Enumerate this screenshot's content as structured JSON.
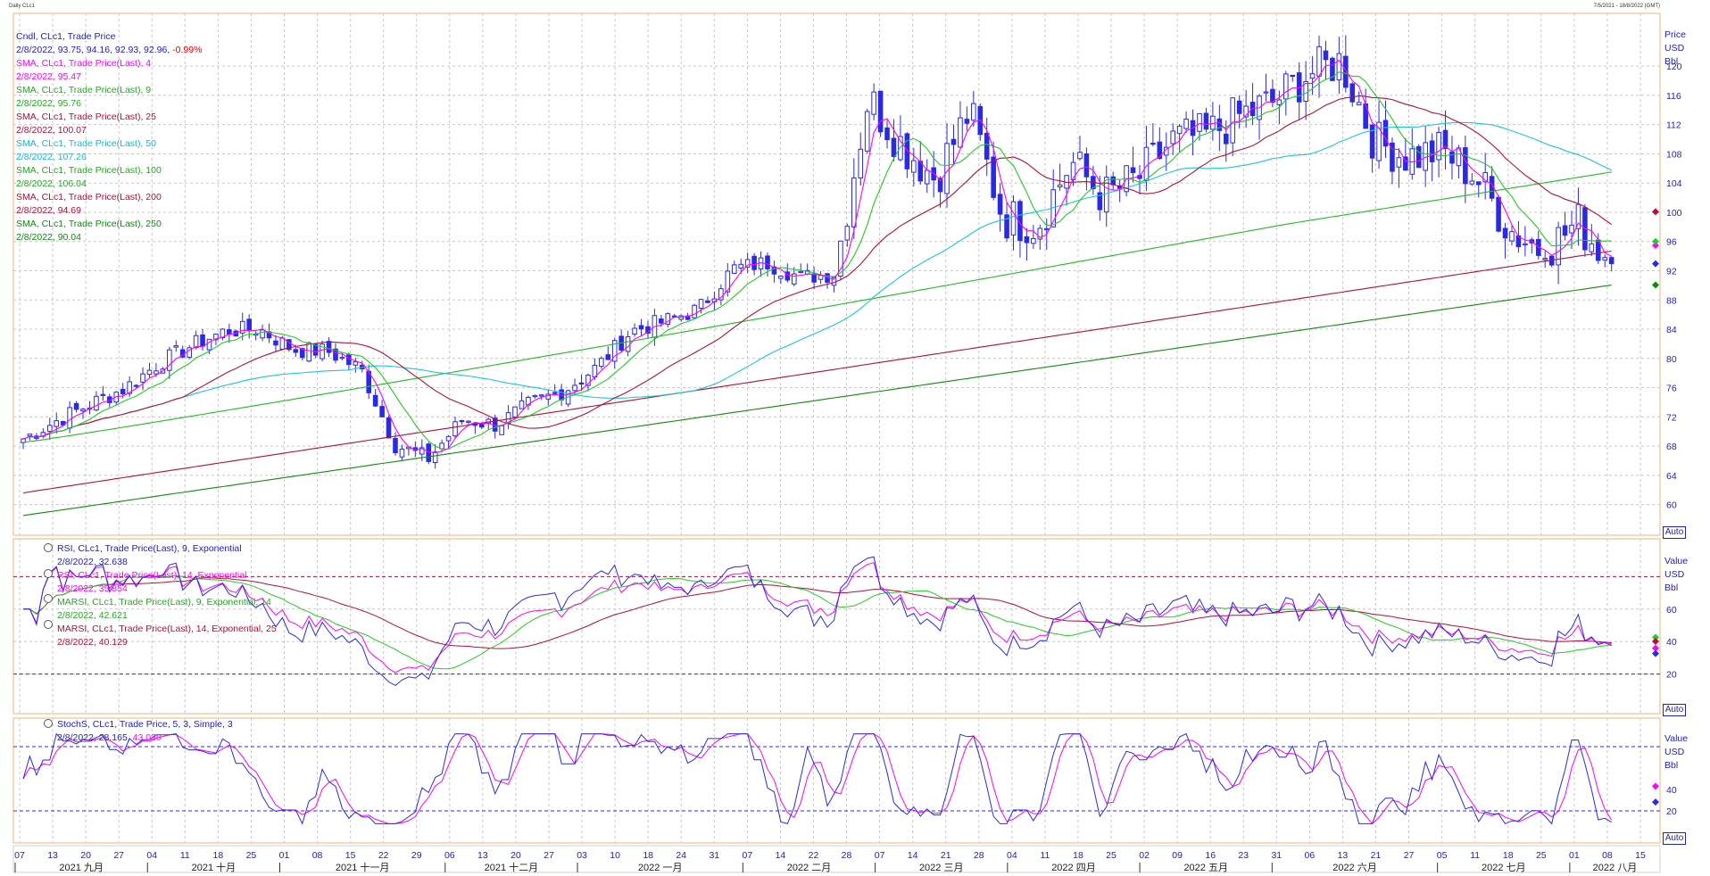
{
  "window": {
    "title": "Daily CLc1",
    "range": "7/5/2021 - 18/8/2022 (GMT)"
  },
  "colors": {
    "candle": "#2a2ae6",
    "sma4": "#ff00ff",
    "sma9": "#22cc22",
    "sma25": "#b0103a",
    "sma50": "#18c8d8",
    "sma100": "#22bb22",
    "sma200": "#b0103a",
    "sma250": "#108a10",
    "rsi9": "#2a2ae6",
    "rsi14": "#ff00ff",
    "marsi9": "#22cc22",
    "marsi14": "#b0103a",
    "stochK": "#2a2ae6",
    "stochD": "#ff00ff",
    "panel_border": "#f5b27a",
    "axis_text": "#2020c0",
    "grid": "#c8c8c8"
  },
  "price_panel": {
    "legend": [
      {
        "label": "Cndl, CLc1, Trade Price",
        "color": "#2020c0"
      },
      {
        "label": "2/8/2022, 93.75, 94.16, 92.93, 92.96,",
        "extra": "-0.99%",
        "color": "#2020c0",
        "extra_color": "#e00000"
      },
      {
        "label": "SMA, CLc1, Trade Price(Last),  4",
        "color": "#ff00ff"
      },
      {
        "label": "2/8/2022, 95.47",
        "color": "#ff00ff"
      },
      {
        "label": "SMA, CLc1, Trade Price(Last),  9",
        "color": "#22aa22"
      },
      {
        "label": "2/8/2022, 95.76",
        "color": "#22aa22"
      },
      {
        "label": "SMA, CLc1, Trade Price(Last),  25",
        "color": "#b0103a"
      },
      {
        "label": "2/8/2022, 100.07",
        "color": "#b0103a"
      },
      {
        "label": "SMA, CLc1, Trade Price(Last),  50",
        "color": "#18b8d0"
      },
      {
        "label": "2/8/2022, 107.26",
        "color": "#18b8d0"
      },
      {
        "label": "SMA, CLc1, Trade Price(Last),  100",
        "color": "#22aa22"
      },
      {
        "label": "2/8/2022, 106.04",
        "color": "#22aa22"
      },
      {
        "label": "SMA, CLc1, Trade Price(Last),  200",
        "color": "#b0103a"
      },
      {
        "label": "2/8/2022, 94.69",
        "color": "#b0103a"
      },
      {
        "label": "SMA, CLc1, Trade Price(Last),  250",
        "color": "#108a10"
      },
      {
        "label": "2/8/2022, 90.04",
        "color": "#108a10"
      }
    ],
    "unit_labels": [
      "Price",
      "USD",
      "Bbl"
    ],
    "y_ticks": [
      60,
      64,
      68,
      72,
      76,
      80,
      84,
      88,
      92,
      96,
      100,
      104,
      108,
      112,
      116,
      120
    ],
    "auto_label": "Auto"
  },
  "rsi_panel": {
    "legend": [
      {
        "label": "RSI, CLc1, Trade Price(Last),  9, Exponential",
        "color": "#2020c0"
      },
      {
        "label": "2/8/2022, 32.638",
        "color": "#2020c0"
      },
      {
        "label": "RSI, CLc1, Trade Price(Last),  14, Exponential",
        "color": "#ff00ff"
      },
      {
        "label": "2/8/2022, 35.854",
        "color": "#ff00ff"
      },
      {
        "label": "MARSI, CLc1, Trade Price(Last),  9, Exponential, 14",
        "color": "#22aa22"
      },
      {
        "label": "2/8/2022, 42.621",
        "color": "#22aa22"
      },
      {
        "label": "MARSI, CLc1, Trade Price(Last),  14, Exponential, 25",
        "color": "#b0103a"
      },
      {
        "label": "2/8/2022, 40.129",
        "color": "#b0103a"
      }
    ],
    "unit_labels": [
      "Value",
      "USD",
      "Bbl"
    ],
    "y_ticks": [
      20,
      40,
      60
    ],
    "levels": [
      20,
      80
    ],
    "auto_label": "Auto"
  },
  "stoch_panel": {
    "legend": [
      {
        "label": "StochS, CLc1, Trade Price,  5, 3, Simple, 3",
        "color": "#2020c0"
      },
      {
        "label": "2/8/2022, 28.165,",
        "extra": "43.030",
        "color": "#2020c0",
        "extra_color": "#ff00ff"
      }
    ],
    "unit_labels": [
      "Value",
      "USD",
      "Bbl"
    ],
    "y_ticks": [
      20,
      40
    ],
    "levels": [
      20,
      80
    ],
    "auto_label": "Auto"
  },
  "x_axis": {
    "day_ticks": [
      "07",
      "13",
      "20",
      "27",
      "04",
      "11",
      "18",
      "25",
      "01",
      "08",
      "15",
      "22",
      "29",
      "06",
      "13",
      "20",
      "27",
      "03",
      "10",
      "18",
      "24",
      "31",
      "07",
      "14",
      "22",
      "28",
      "07",
      "14",
      "21",
      "28",
      "04",
      "11",
      "18",
      "25",
      "02",
      "09",
      "16",
      "23",
      "31",
      "06",
      "13",
      "21",
      "27",
      "05",
      "11",
      "18",
      "25",
      "01",
      "08",
      "15"
    ],
    "months": [
      "2021 九月",
      "2021 十月",
      "2021 十一月",
      "2021 十二月",
      "2022 一月",
      "2022 二月",
      "2022 三月",
      "2022 四月",
      "2022 五月",
      "2022 六月",
      "2022 七月",
      "2022 八月"
    ]
  },
  "chart_data": {
    "type": "candlestick",
    "title": "Daily CLc1",
    "x_range": [
      "2021-09-07",
      "2022-08-15"
    ],
    "price_ylim": [
      58,
      126
    ],
    "indicator_ylim": [
      0,
      100
    ],
    "close_weekly": [
      {
        "week": "2021-09-07",
        "close": 69.0
      },
      {
        "week": "2021-09-13",
        "close": 71.5
      },
      {
        "week": "2021-09-20",
        "close": 73.8
      },
      {
        "week": "2021-09-27",
        "close": 75.9
      },
      {
        "week": "2021-10-04",
        "close": 79.3
      },
      {
        "week": "2021-10-11",
        "close": 81.8
      },
      {
        "week": "2021-10-18",
        "close": 83.8
      },
      {
        "week": "2021-10-25",
        "close": 84.0
      },
      {
        "week": "2021-11-01",
        "close": 81.2
      },
      {
        "week": "2021-11-08",
        "close": 81.0
      },
      {
        "week": "2021-11-15",
        "close": 78.5
      },
      {
        "week": "2021-11-22",
        "close": 68.2
      },
      {
        "week": "2021-11-29",
        "close": 66.3
      },
      {
        "week": "2021-12-06",
        "close": 71.7
      },
      {
        "week": "2021-12-13",
        "close": 70.9
      },
      {
        "week": "2021-12-20",
        "close": 73.8
      },
      {
        "week": "2021-12-27",
        "close": 75.6
      },
      {
        "week": "2022-01-03",
        "close": 78.9
      },
      {
        "week": "2022-01-10",
        "close": 83.8
      },
      {
        "week": "2022-01-18",
        "close": 85.1
      },
      {
        "week": "2022-01-24",
        "close": 86.8
      },
      {
        "week": "2022-01-31",
        "close": 92.3
      },
      {
        "week": "2022-02-07",
        "close": 93.1
      },
      {
        "week": "2022-02-14",
        "close": 91.1
      },
      {
        "week": "2022-02-22",
        "close": 91.6
      },
      {
        "week": "2022-02-28",
        "close": 115.7
      },
      {
        "week": "2022-03-07",
        "close": 109.3
      },
      {
        "week": "2022-03-14",
        "close": 104.7
      },
      {
        "week": "2022-03-21",
        "close": 113.9
      },
      {
        "week": "2022-03-28",
        "close": 99.3
      },
      {
        "week": "2022-04-04",
        "close": 98.3
      },
      {
        "week": "2022-04-11",
        "close": 106.9
      },
      {
        "week": "2022-04-18",
        "close": 102.1
      },
      {
        "week": "2022-04-25",
        "close": 104.7
      },
      {
        "week": "2022-05-02",
        "close": 109.8
      },
      {
        "week": "2022-05-09",
        "close": 110.5
      },
      {
        "week": "2022-05-16",
        "close": 113.2
      },
      {
        "week": "2022-05-23",
        "close": 115.1
      },
      {
        "week": "2022-05-31",
        "close": 118.9
      },
      {
        "week": "2022-06-06",
        "close": 120.7
      },
      {
        "week": "2022-06-13",
        "close": 109.6
      },
      {
        "week": "2022-06-21",
        "close": 107.6
      },
      {
        "week": "2022-06-27",
        "close": 108.4
      },
      {
        "week": "2022-07-05",
        "close": 104.8
      },
      {
        "week": "2022-07-11",
        "close": 97.6
      },
      {
        "week": "2022-07-18",
        "close": 94.7
      },
      {
        "week": "2022-07-25",
        "close": 98.6
      },
      {
        "week": "2022-08-01",
        "close": 92.96
      }
    ]
  }
}
